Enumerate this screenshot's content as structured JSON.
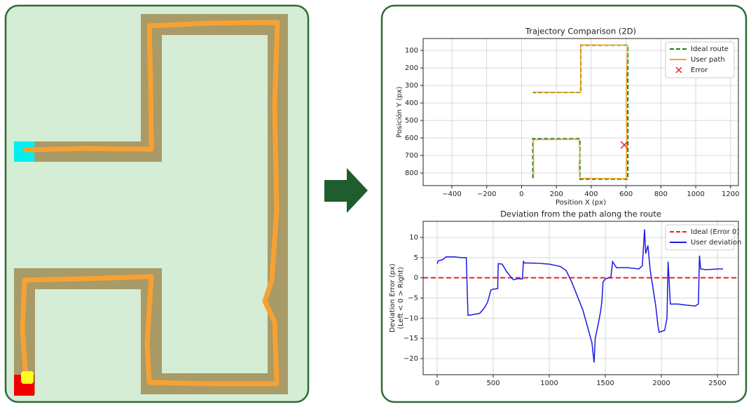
{
  "chart_data": [
    {
      "type": "line",
      "title": "Trajectory Comparison (2D)",
      "xlabel": "Position X (px)",
      "ylabel": "Posición Y (px)",
      "xlim": [
        -565,
        1245
      ],
      "ylim": [
        872,
        32
      ],
      "y_inverted": true,
      "grid": true,
      "legend": "upper right",
      "xticks": [
        {
          "value": -400,
          "label": "−400"
        },
        {
          "value": -200,
          "label": "−200"
        },
        0,
        200,
        400,
        600,
        800,
        1000,
        1200
      ],
      "yticks": [
        100,
        200,
        300,
        400,
        500,
        600,
        700,
        800
      ],
      "series": [
        {
          "name": "Ideal route",
          "color": "#1a7a1a",
          "linestyle": "dashed",
          "x": [
            65,
            65,
            335,
            335,
            610,
            610,
            340,
            340,
            65
          ],
          "values": [
            830,
            605,
            605,
            835,
            835,
            70,
            70,
            340,
            340
          ]
        },
        {
          "name": "User path",
          "color": "#f5a623",
          "linestyle": "solid",
          "x": [
            70,
            68,
            330,
            335,
            330,
            335,
            600,
            605,
            600,
            608,
            340,
            338,
            65
          ],
          "values": [
            825,
            610,
            608,
            700,
            760,
            830,
            832,
            600,
            400,
            70,
            68,
            340,
            338
          ]
        },
        {
          "name": "Error",
          "color": "#e8231d",
          "marker": "x",
          "x": [
            590
          ],
          "values": [
            640
          ]
        }
      ]
    },
    {
      "type": "line",
      "title": "Deviation from the path along the route",
      "ylabel": [
        "Deviation Error (px)",
        "(Left < 0 > Right)"
      ],
      "xlim": [
        -125,
        2687
      ],
      "ylim": [
        -24,
        14
      ],
      "grid": true,
      "legend": "upper right",
      "xticks": [
        0,
        500,
        1000,
        1500,
        2000,
        2500
      ],
      "yticks": [
        10,
        5,
        0,
        {
          "value": -5,
          "label": "−5"
        },
        {
          "value": -10,
          "label": "−10"
        },
        {
          "value": -15,
          "label": "−15"
        },
        {
          "value": -20,
          "label": "−20"
        }
      ],
      "reference_line": {
        "name": "Ideal (Error 0)",
        "value": 0,
        "color": "#e8231d",
        "linestyle": "dashed"
      },
      "series": [
        {
          "name": "User deviation",
          "color": "#1a1ae6",
          "linestyle": "solid",
          "x": [
            0,
            10,
            50,
            80,
            150,
            220,
            260,
            275,
            300,
            380,
            420,
            450,
            480,
            500,
            540,
            545,
            580,
            620,
            680,
            720,
            760,
            770,
            775,
            900,
            1000,
            1100,
            1150,
            1200,
            1300,
            1380,
            1400,
            1410,
            1440,
            1460,
            1470,
            1480,
            1500,
            1550,
            1565,
            1600,
            1700,
            1800,
            1830,
            1850,
            1860,
            1880,
            1900,
            1950,
            1970,
            1980,
            2030,
            2050,
            2060,
            2080,
            2150,
            2200,
            2300,
            2330,
            2340,
            2350,
            2400,
            2500,
            2550
          ],
          "values": [
            3.5,
            4.2,
            4.5,
            5.2,
            5.2,
            5.0,
            5.0,
            -9.3,
            -9.2,
            -8.8,
            -7.5,
            -6,
            -3,
            -2.8,
            -2.7,
            3.5,
            3.4,
            1.5,
            -0.5,
            -0.2,
            -0.3,
            4.2,
            3.7,
            3.6,
            3.4,
            2.8,
            1.8,
            -1,
            -8,
            -16,
            -21,
            -15,
            -11,
            -8,
            -5.5,
            -1,
            -0.3,
            0.2,
            4,
            2.5,
            2.5,
            2.2,
            3,
            12,
            6,
            8,
            2,
            -7,
            -12,
            -13.5,
            -13,
            -10,
            4,
            -6.5,
            -6.5,
            -6.7,
            -7,
            -6.5,
            5.5,
            2.2,
            2,
            2.2,
            2.2
          ]
        }
      ]
    }
  ]
}
